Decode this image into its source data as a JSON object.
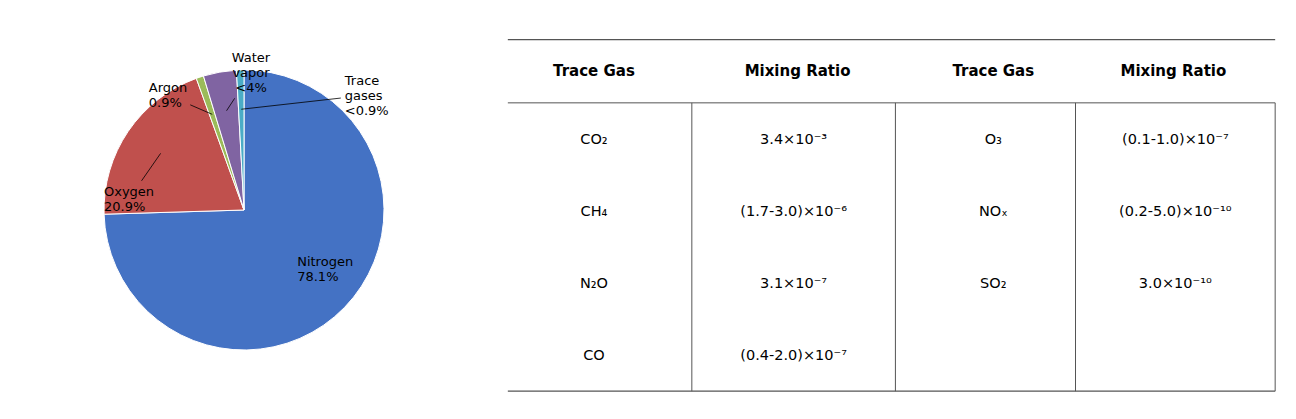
{
  "chart_data": [
    {
      "type": "pie",
      "categories": [
        "Nitrogen",
        "Oxygen",
        "Argon",
        "Water vapor",
        "Trace gases"
      ],
      "values": [
        78.1,
        20.9,
        0.9,
        4.0,
        0.9
      ],
      "value_labels": [
        "78.1%",
        "20.9%",
        "0.9%",
        "<4%",
        "<0.9%"
      ],
      "colors": [
        "#4472C4",
        "#C0504D",
        "#9BBB59",
        "#8064A2",
        "#4BACC6"
      ],
      "data_labels": true
    },
    {
      "type": "table",
      "columns": [
        "Trace Gas",
        "Mixing Ratio",
        "Trace Gas",
        "Mixing Ratio"
      ],
      "rows": [
        [
          "CO₂",
          "3.4×10⁻³",
          "O₃",
          "(0.1-1.0)×10⁻⁷"
        ],
        [
          "CH₄",
          "(1.7-3.0)×10⁻⁶",
          "NOₓ",
          "(0.2-5.0)×10⁻¹⁰"
        ],
        [
          "N₂O",
          "3.1×10⁻⁷",
          "SO₂",
          "3.0×10⁻¹⁰"
        ],
        [
          "CO",
          "(0.4-2.0)×10⁻⁷",
          null,
          null
        ]
      ],
      "color": "#555555"
    }
  ]
}
